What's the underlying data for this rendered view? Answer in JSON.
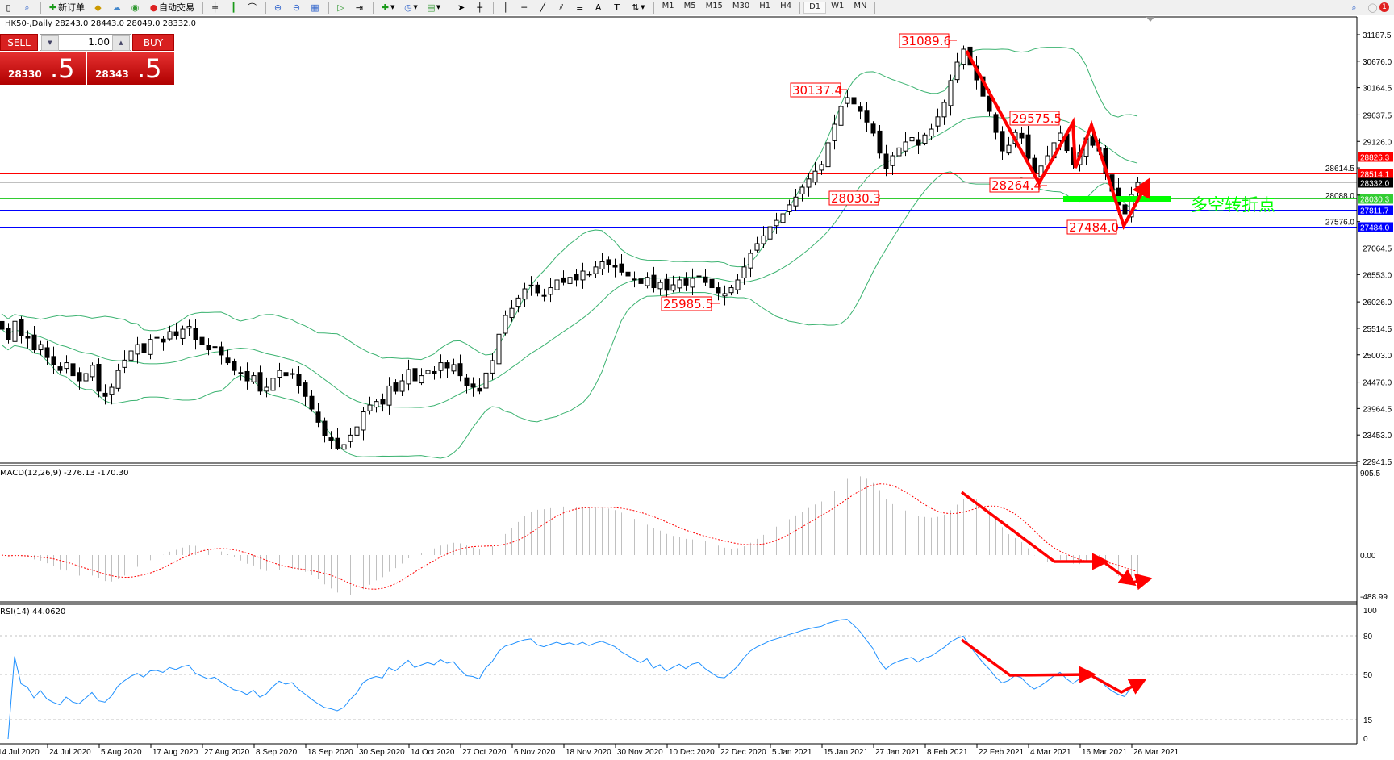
{
  "toolbar": {
    "new_order_label": "新订单",
    "auto_trading_label": "自动交易",
    "timeframes": [
      "M1",
      "M5",
      "M15",
      "M30",
      "H1",
      "H4",
      "D1",
      "W1",
      "MN"
    ],
    "active_timeframe": "D1",
    "notification_count": "1"
  },
  "chart_header": "HK50-,Daily  28243.0 28443.0 28049.0 28332.0",
  "trade_panel": {
    "sell_label": "SELL",
    "buy_label": "BUY",
    "lot": "1.00",
    "sell_price_small": "28330",
    "sell_price_big": ".5",
    "buy_price_small": "28343",
    "buy_price_big": ".5"
  },
  "colors": {
    "background": "#ffffff",
    "bull_candle": "#ffffff",
    "bear_candle": "#000000",
    "bollinger": "#3cb371",
    "macd_hist": "#c0c0c0",
    "macd_signal": "#ff0000",
    "rsi_line": "#1e90ff",
    "annotation": "#ff0000",
    "turning_point": "#00ff00"
  },
  "price_axis": [
    "31187.5",
    "30676.0",
    "30164.5",
    "29637.5",
    "29126.0",
    "28614.5",
    "28088.0",
    "27576.0",
    "27064.5",
    "26553.0",
    "26026.0",
    "25514.5",
    "25003.0",
    "24476.0",
    "23964.5",
    "23453.0",
    "22941.5"
  ],
  "levels": [
    {
      "price": "28826.3",
      "color": "#ff0000",
      "text_color": "#ffffff"
    },
    {
      "price": "28514.1",
      "color": "#ff0000",
      "text_color": "#ffffff"
    },
    {
      "price": "28332.0",
      "color": "#000000",
      "line_color": "#c0c0c0",
      "text_color": "#ffffff"
    },
    {
      "price": "28030.3",
      "color": "#32cd32",
      "text_color": "#ffffff"
    },
    {
      "price": "27811.7",
      "color": "#0000ff",
      "text_color": "#ffffff"
    },
    {
      "price": "27484.0",
      "color": "#0000ff",
      "text_color": "#ffffff"
    }
  ],
  "price_labels": [
    "31089.6",
    "30137.4",
    "29575.5",
    "28264.4",
    "28030.3",
    "25985.5",
    "27484.0"
  ],
  "turning_point_text": "多空转折点",
  "date_axis": [
    "14 Jul 2020",
    "24 Jul 2020",
    "5 Aug 2020",
    "17 Aug 2020",
    "27 Aug 2020",
    "8 Sep 2020",
    "18 Sep 2020",
    "30 Sep 2020",
    "14 Oct 2020",
    "27 Oct 2020",
    "6 Nov 2020",
    "18 Nov 2020",
    "30 Nov 2020",
    "10 Dec 2020",
    "22 Dec 2020",
    "5 Jan 2021",
    "15 Jan 2021",
    "27 Jan 2021",
    "8 Feb 2021",
    "22 Feb 2021",
    "4 Mar 2021",
    "16 Mar 2021",
    "26 Mar 2021"
  ],
  "macd": {
    "label": "MACD(12,26,9) -276.13 -170.30",
    "axis": [
      "905.5",
      "0.00",
      "-488.99"
    ]
  },
  "rsi": {
    "label": "RSI(14) 44.0620",
    "axis": [
      "100",
      "80",
      "50",
      "15",
      "0"
    ],
    "levels": [
      80,
      50,
      15
    ]
  },
  "chart_data": {
    "type": "candlestick",
    "symbol": "HK50-",
    "timeframe": "Daily",
    "last_bar": {
      "open": 28243.0,
      "high": 28443.0,
      "low": 28049.0,
      "close": 28332.0
    },
    "ylim": [
      22941.5,
      31187.5
    ],
    "close": [
      25497,
      25300,
      25650,
      25380,
      25326,
      25100,
      25200,
      24950,
      24812,
      24700,
      24850,
      24600,
      24500,
      24640,
      24800,
      24300,
      24200,
      24375,
      24700,
      24900,
      25077,
      25200,
      25050,
      25300,
      25326,
      25250,
      25450,
      25380,
      25497,
      25550,
      25300,
      25200,
      25100,
      25155,
      25000,
      24850,
      24700,
      24640,
      24500,
      24600,
      24300,
      24375,
      24550,
      24700,
      24600,
      24640,
      24400,
      24200,
      23955,
      23700,
      23440,
      23350,
      23200,
      23268,
      23450,
      23610,
      23900,
      24032,
      24100,
      24050,
      24400,
      24297,
      24500,
      24718,
      24500,
      24600,
      24700,
      24640,
      24850,
      24750,
      24812,
      24600,
      24400,
      24375,
      24300,
      24650,
      24890,
      25400,
      25763,
      25900,
      26100,
      26277,
      26350,
      26200,
      26150,
      26300,
      26449,
      26400,
      26500,
      26450,
      26620,
      26550,
      26700,
      26800,
      26750,
      26698,
      26600,
      26527,
      26450,
      26380,
      26500,
      26300,
      26400,
      26250,
      26355,
      26450,
      26350,
      26480,
      26527,
      26400,
      26300,
      26200,
      26184,
      26300,
      26449,
      26700,
      26963,
      27150,
      27300,
      27477,
      27600,
      27727,
      27900,
      28050,
      28241,
      28400,
      28550,
      28677,
      29100,
      29457,
      29800,
      29972,
      29850,
      29706,
      29500,
      29286,
      28900,
      28599,
      28849,
      29000,
      29115,
      29200,
      29050,
      29250,
      29363,
      29600,
      29878,
      30300,
      30657,
      30907,
      30600,
      30314,
      30000,
      29706,
      29300,
      28942,
      29050,
      29300,
      29192,
      28800,
      28506,
      28650,
      28849,
      29100,
      29286,
      28950,
      28677,
      28900,
      29192,
      29050,
      28942,
      28500,
      28163,
      27900,
      27727,
      28100,
      28332
    ],
    "indicators": [
      "Bollinger Bands(20,2)",
      "MACD(12,26,9)",
      "RSI(14)"
    ]
  }
}
